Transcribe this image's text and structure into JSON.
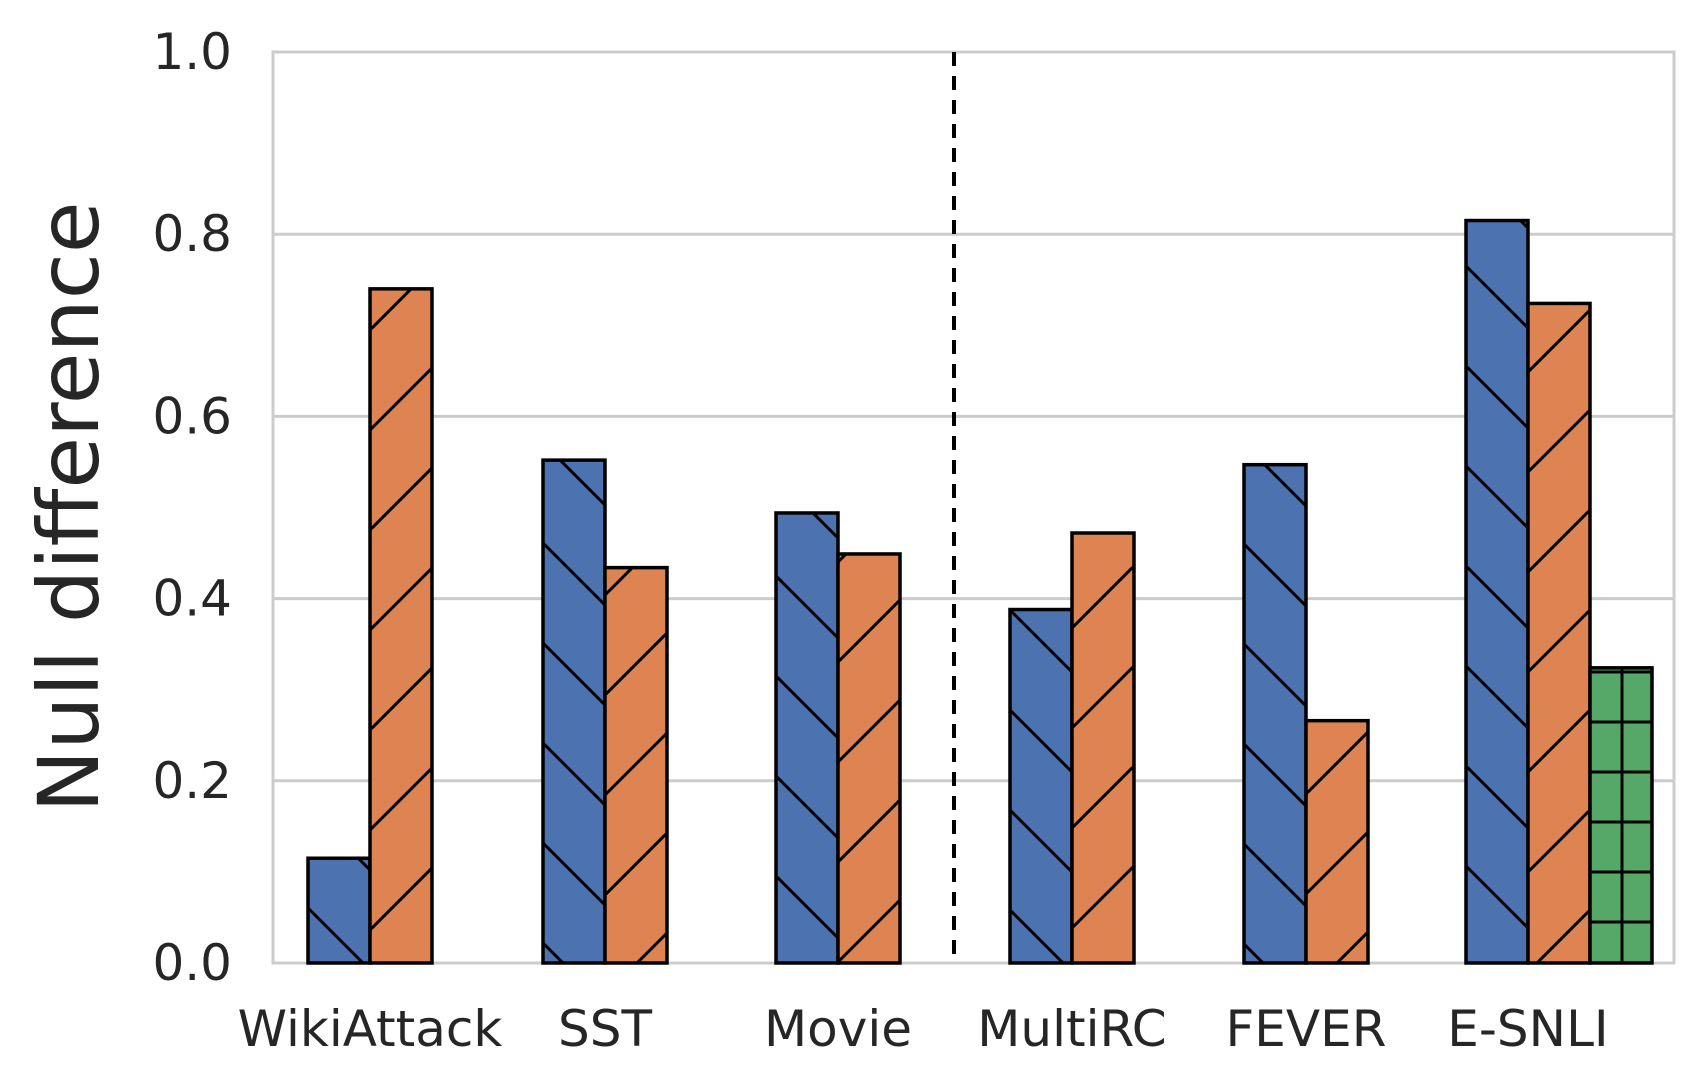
{
  "chart_data": {
    "type": "bar",
    "title": "",
    "xlabel": "",
    "ylabel": "Null difference",
    "ylim": [
      0,
      1.0
    ],
    "yticks": [
      "0.0",
      "0.2",
      "0.4",
      "0.6",
      "0.8",
      "1.0"
    ],
    "categories": [
      "WikiAttack",
      "SST",
      "Movie",
      "MultiRC",
      "FEVER",
      "E-SNLI"
    ],
    "series": [
      {
        "color": "#4C72B0",
        "hatch": "backslash",
        "values": [
          0.115,
          0.552,
          0.494,
          0.388,
          0.547,
          0.815
        ]
      },
      {
        "color": "#DD8452",
        "hatch": "slash",
        "values": [
          0.74,
          0.434,
          0.449,
          0.472,
          0.266,
          0.724
        ]
      },
      {
        "color": "#55A868",
        "hatch": "grid",
        "values": [
          null,
          null,
          null,
          null,
          null,
          0.324
        ]
      }
    ],
    "separator_after_category": "Movie",
    "grid": "y",
    "legend": "none"
  }
}
